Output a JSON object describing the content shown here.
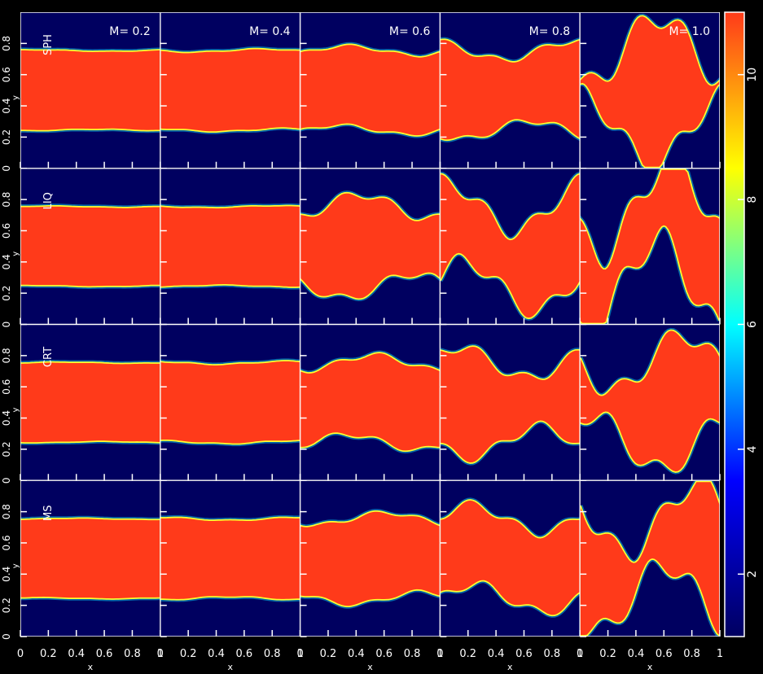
{
  "chart_data": {
    "type": "heatmap",
    "title": "",
    "rows": [
      "SPH",
      "LIQ",
      "CRT",
      "MS"
    ],
    "columns": [
      "M= 0.2",
      "M= 0.4",
      "M= 0.6",
      "M= 0.8",
      "M= 1.0"
    ],
    "xlabel": "x",
    "ylabel": "y",
    "xlim": [
      0,
      1
    ],
    "ylim": [
      0,
      1
    ],
    "x_ticks": [
      "0",
      "0.2",
      "0.4",
      "0.6",
      "0.8",
      "1"
    ],
    "y_ticks": [
      "0",
      "0.2",
      "0.4",
      "0.6",
      "0.8"
    ],
    "colorbar": {
      "range": [
        1,
        11
      ],
      "ticks": [
        "2",
        "4",
        "6",
        "8",
        "10"
      ],
      "colors": [
        "#000060",
        "#0000ff",
        "#00ffff",
        "#ffff00",
        "#ff3a1a"
      ]
    },
    "interface_amplitude": [
      [
        0.005,
        0.01,
        0.03,
        0.06,
        0.22
      ],
      [
        0.004,
        0.006,
        0.08,
        0.16,
        0.3
      ],
      [
        0.004,
        0.01,
        0.05,
        0.1,
        0.18
      ],
      [
        0.004,
        0.01,
        0.04,
        0.09,
        0.22
      ]
    ]
  }
}
